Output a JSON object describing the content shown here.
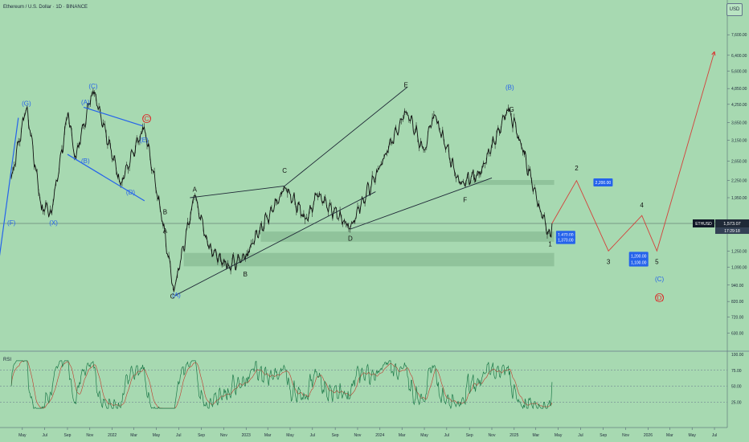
{
  "header": {
    "title": "Ethereum / U.S. Dollar · 1D · BINANCE"
  },
  "currency_badge": "USD",
  "ticker_tag": "ETHUSD",
  "last_price": "1,573.07",
  "countdown": "17:29:18",
  "rsi_title": "RSI",
  "colors": {
    "background": "#a7d9b1",
    "price": "#111111",
    "blue": "#2563eb",
    "red_target": "#dc2626",
    "rsi_line": "#1e7a4a",
    "rsi_ma": "#c0392b"
  },
  "chart_data": {
    "type": "line",
    "y_scale": "log",
    "y_axis": {
      "ticks": [
        "7,600.00",
        "6,400.00",
        "5,600.00",
        "4,850.00",
        "4,250.00",
        "3,650.00",
        "3,150.00",
        "2,650.00",
        "2,250.00",
        "1,950.00",
        "1,570.00",
        "1,250.00",
        "1,090.00",
        "940.00",
        "820.00",
        "720.00",
        "630.00"
      ]
    },
    "x_axis": {
      "ticks": [
        "May",
        "Jul",
        "Sep",
        "Nov",
        "2022",
        "Mar",
        "May",
        "Jul",
        "Sep",
        "Nov",
        "2023",
        "Mar",
        "May",
        "Jul",
        "Sep",
        "Nov",
        "2024",
        "Mar",
        "May",
        "Jul",
        "Sep",
        "Nov",
        "2025",
        "Mar",
        "May",
        "Jul",
        "Sep",
        "Nov",
        "2026",
        "Mar",
        "May",
        "Jul"
      ]
    },
    "price_path": [
      {
        "t": "2021-04-01",
        "p": 2300
      },
      {
        "t": "2021-05-12",
        "p": 4200
      },
      {
        "t": "2021-06-22",
        "p": 1800
      },
      {
        "t": "2021-07-20",
        "p": 1750
      },
      {
        "t": "2021-09-03",
        "p": 3950
      },
      {
        "t": "2021-09-22",
        "p": 2700
      },
      {
        "t": "2021-11-10",
        "p": 4850
      },
      {
        "t": "2022-01-24",
        "p": 2200
      },
      {
        "t": "2022-03-29",
        "p": 3500
      },
      {
        "t": "2022-05-12",
        "p": 1800
      },
      {
        "t": "2022-06-18",
        "p": 900
      },
      {
        "t": "2022-08-14",
        "p": 2000
      },
      {
        "t": "2022-09-20",
        "p": 1300
      },
      {
        "t": "2022-11-10",
        "p": 1100
      },
      {
        "t": "2022-12-30",
        "p": 1200
      },
      {
        "t": "2023-04-16",
        "p": 2130
      },
      {
        "t": "2023-06-15",
        "p": 1630
      },
      {
        "t": "2023-07-14",
        "p": 2000
      },
      {
        "t": "2023-10-12",
        "p": 1530
      },
      {
        "t": "2024-01-12",
        "p": 2700
      },
      {
        "t": "2024-03-12",
        "p": 4080
      },
      {
        "t": "2024-05-01",
        "p": 2850
      },
      {
        "t": "2024-05-27",
        "p": 3950
      },
      {
        "t": "2024-08-05",
        "p": 2200
      },
      {
        "t": "2024-10-01",
        "p": 2400
      },
      {
        "t": "2024-12-16",
        "p": 4100
      },
      {
        "t": "2025-01-15",
        "p": 3200
      },
      {
        "t": "2025-03-11",
        "p": 1800
      },
      {
        "t": "2025-04-09",
        "p": 1420
      },
      {
        "t": "2025-04-14",
        "p": 1573
      }
    ],
    "projection": [
      {
        "t": "2025-04-14",
        "p": 1573
      },
      {
        "t": "2025-06-20",
        "p": 2250
      },
      {
        "t": "2025-09-15",
        "p": 1250
      },
      {
        "t": "2025-12-15",
        "p": 1680
      },
      {
        "t": "2026-01-25",
        "p": 1250
      },
      {
        "t": "2026-07-01",
        "p": 6600
      }
    ],
    "price_boxes": [
      {
        "label": "2,200.00",
        "low": 2170,
        "high": 2260
      },
      {
        "label": "1,470.00",
        "low": 1390,
        "high": 1470
      },
      {
        "label": "1,370.00",
        "low": 1350,
        "high": 1390
      },
      {
        "label": "1,200.00",
        "low": 1170,
        "high": 1230
      },
      {
        "label": "1,100.00",
        "low": 1100,
        "high": 1170
      }
    ],
    "wave_labels": [
      {
        "text": "(G)",
        "t": "2021-05-12",
        "p": 4200,
        "color": "blue"
      },
      {
        "text": "(C)",
        "t": "2021-11-10",
        "p": 4850,
        "color": "blue"
      },
      {
        "text": "(A)",
        "t": "2021-10-20",
        "p": 4250,
        "color": "blue"
      },
      {
        "text": "(B)",
        "t": "2021-10-20",
        "p": 2600,
        "color": "blue"
      },
      {
        "text": "(D)",
        "t": "2022-02-20",
        "p": 2000,
        "color": "blue"
      },
      {
        "text": "(E)",
        "t": "2022-03-29",
        "p": 3100,
        "color": "blue"
      },
      {
        "text": "(A)",
        "t": "2022-06-25",
        "p": 850,
        "color": "blue"
      },
      {
        "text": "(X)",
        "t": "2021-07-25",
        "p": 1550,
        "color": "blue"
      },
      {
        "text": "(F)",
        "t": "2021-04-01",
        "p": 1550,
        "color": "blue"
      },
      {
        "text": "(B)",
        "t": "2024-12-20",
        "p": 4800,
        "color": "blue"
      },
      {
        "text": "(C)",
        "t": "2026-02-01",
        "p": 970,
        "color": "blue"
      },
      {
        "text": "(D)",
        "t": "2026-02-01",
        "p": 830,
        "color": "red"
      },
      {
        "text": "(C)",
        "t": "2022-04-05",
        "p": 3700,
        "color": "red"
      },
      {
        "text": "A",
        "t": "2022-05-25",
        "p": 1450,
        "color": "dark"
      },
      {
        "text": "B",
        "t": "2022-05-25",
        "p": 1700,
        "color": "dark"
      },
      {
        "text": "C",
        "t": "2022-06-14",
        "p": 840,
        "color": "dark"
      },
      {
        "text": "A",
        "t": "2022-08-14",
        "p": 2050,
        "color": "dark"
      },
      {
        "text": "B",
        "t": "2022-12-30",
        "p": 1010,
        "color": "dark"
      },
      {
        "text": "C",
        "t": "2023-04-16",
        "p": 2400,
        "color": "dark"
      },
      {
        "text": "D",
        "t": "2023-10-12",
        "p": 1360,
        "color": "dark"
      },
      {
        "text": "E",
        "t": "2024-03-12",
        "p": 4900,
        "color": "dark"
      },
      {
        "text": "F",
        "t": "2024-08-20",
        "p": 1880,
        "color": "dark"
      },
      {
        "text": "G",
        "t": "2024-12-25",
        "p": 4000,
        "color": "dark"
      },
      {
        "text": "1",
        "t": "2025-04-09",
        "p": 1300,
        "color": "dark"
      },
      {
        "text": "2",
        "t": "2025-06-20",
        "p": 2450,
        "color": "dark"
      },
      {
        "text": "3",
        "t": "2025-09-15",
        "p": 1120,
        "color": "dark"
      },
      {
        "text": "4",
        "t": "2025-12-15",
        "p": 1800,
        "color": "dark"
      },
      {
        "text": "5",
        "t": "2026-01-25",
        "p": 1120,
        "color": "dark"
      }
    ],
    "rsi": {
      "levels": [
        75,
        50,
        25
      ],
      "ticks": [
        "100.00",
        "75.00",
        "50.00",
        "25.00"
      ],
      "range": [
        0,
        100
      ]
    }
  }
}
